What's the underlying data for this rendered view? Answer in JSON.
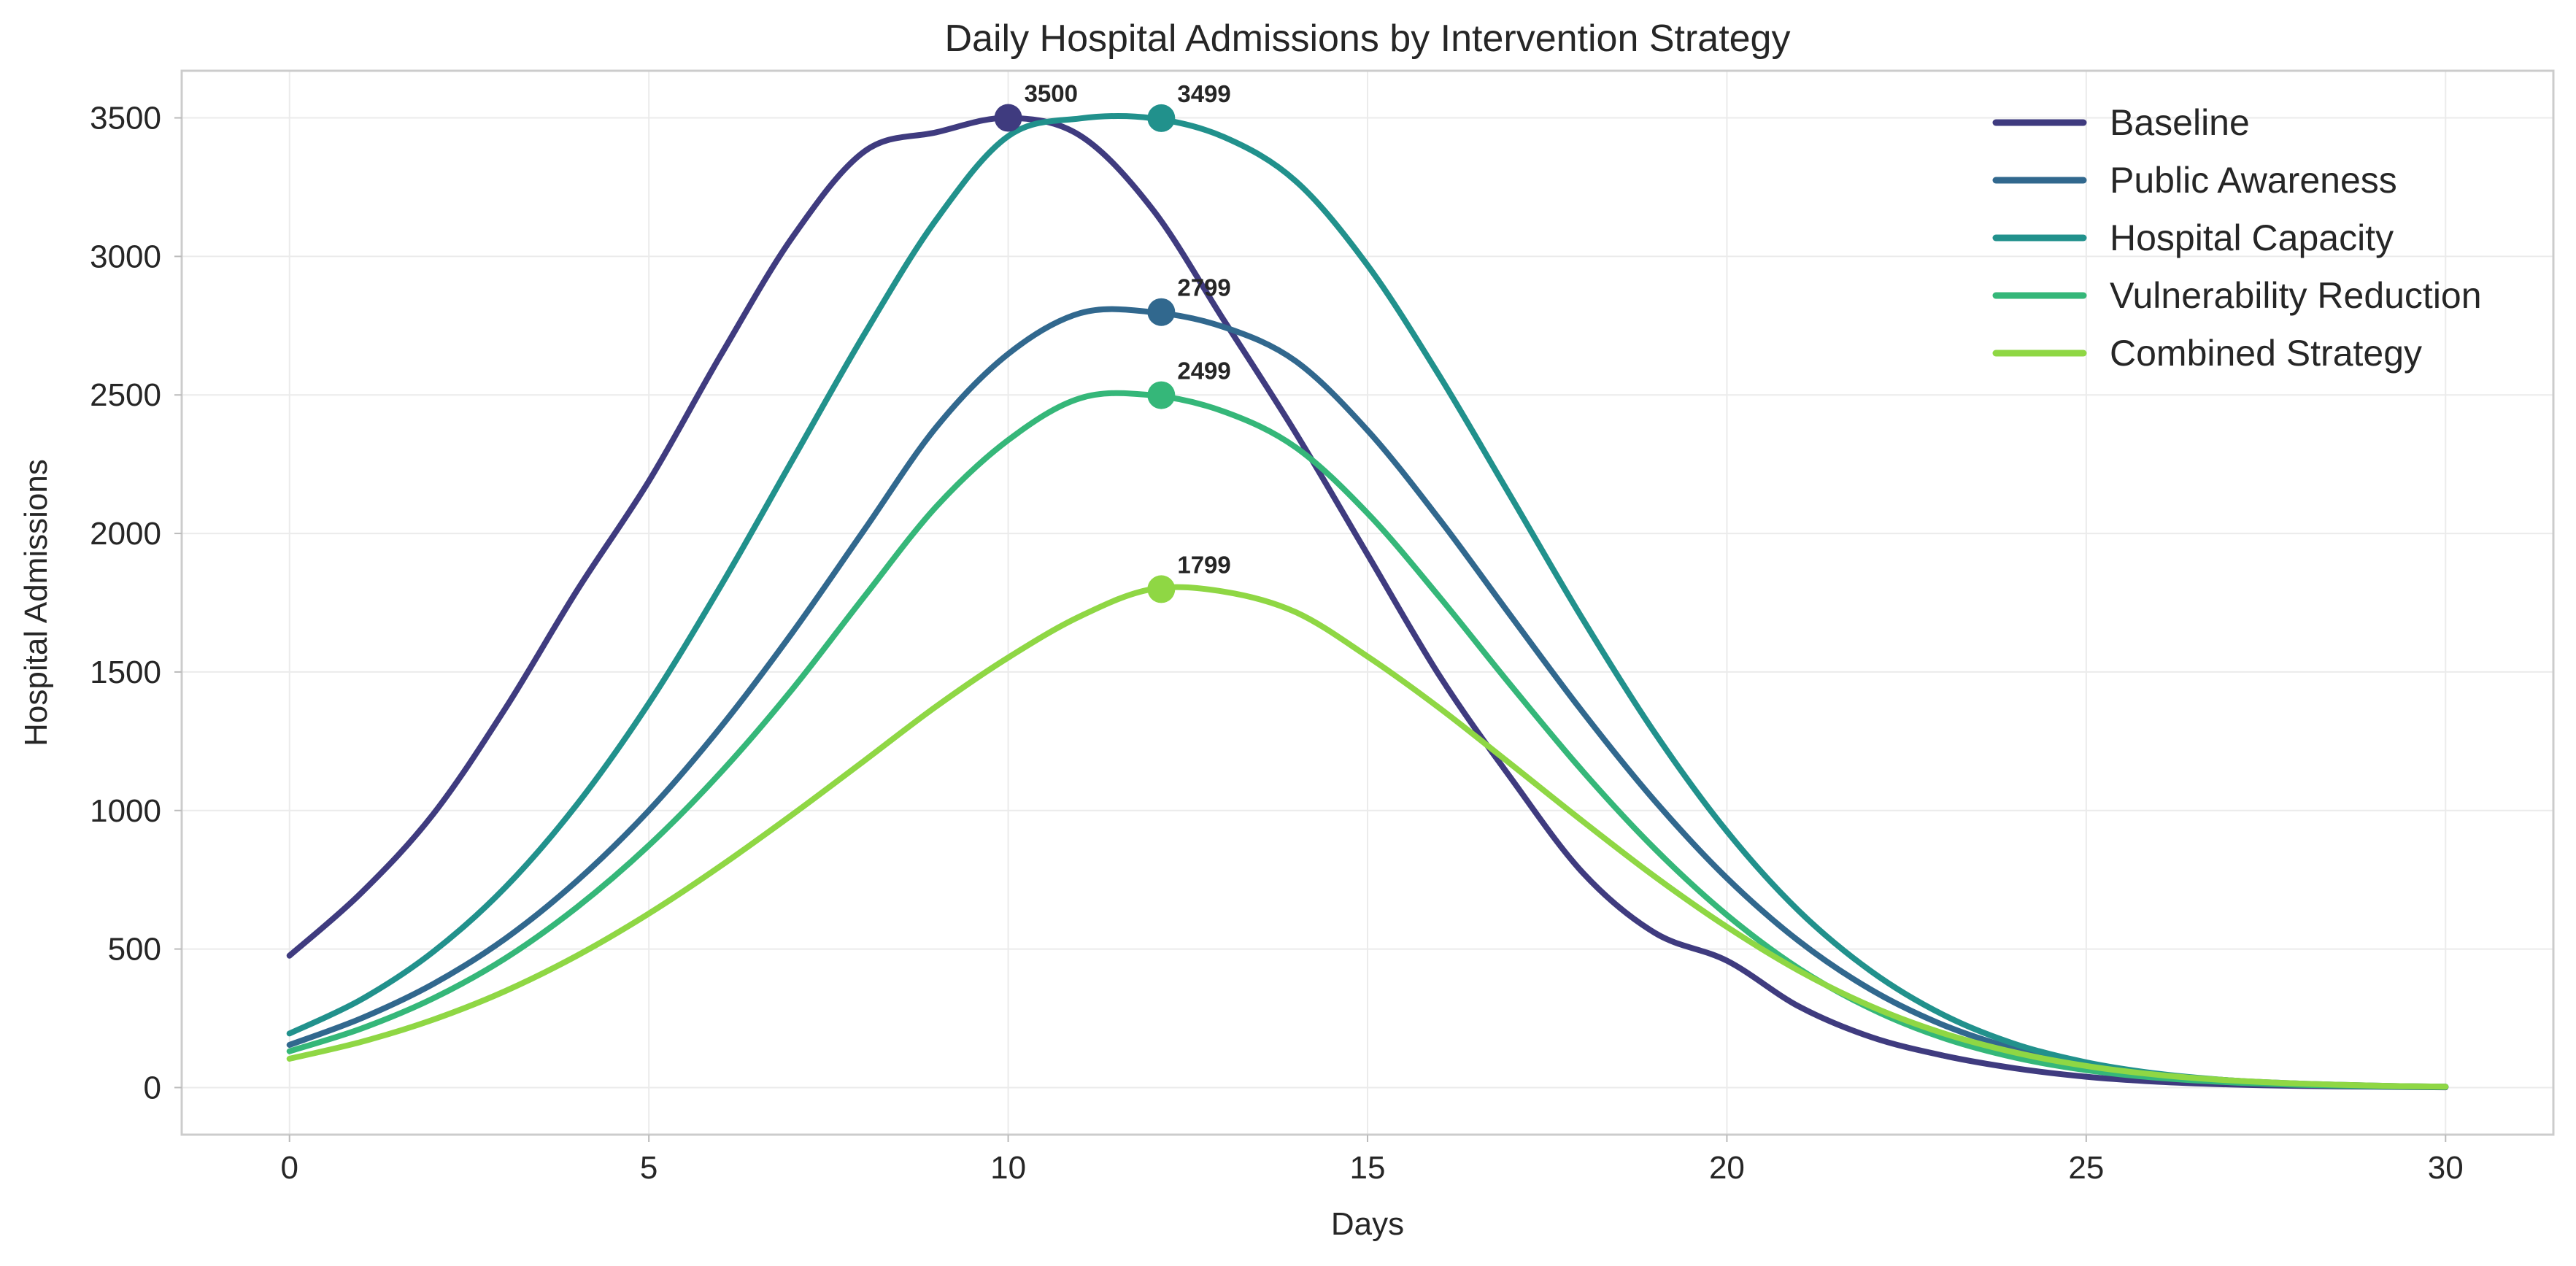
{
  "chart_data": {
    "type": "line",
    "title": "Daily Hospital Admissions by Intervention Strategy",
    "xlabel": "Days",
    "ylabel": "Hospital Admissions",
    "xlim": [
      -1.5,
      31.5
    ],
    "ylim": [
      -170,
      3670
    ],
    "xticks": [
      0,
      5,
      10,
      15,
      20,
      25,
      30
    ],
    "yticks": [
      0,
      500,
      1000,
      1500,
      2000,
      2500,
      3000,
      3500
    ],
    "grid": true,
    "legend_position": "top-right",
    "x": [
      0,
      1,
      2,
      3,
      4,
      5,
      6,
      7,
      8,
      9,
      10,
      11,
      12,
      13,
      14,
      15,
      16,
      17,
      18,
      19,
      20,
      21,
      22,
      23,
      24,
      25,
      26,
      27,
      28,
      29,
      30
    ],
    "series": [
      {
        "name": "Baseline",
        "color": "#3f3b7f",
        "values": [
          476,
          703,
          987,
          1367,
          1794,
          2189,
          2643,
          3070,
          3379,
          3448,
          3500,
          3436,
          3173,
          2770,
          2363,
          1924,
          1487,
          1115,
          774,
          558,
          458,
          293,
          183,
          116,
          70,
          39,
          21,
          11,
          6,
          3,
          1
        ],
        "peak": {
          "x": 10,
          "y": 3500,
          "label": "3500"
        }
      },
      {
        "name": "Public Awareness",
        "color": "#31688e",
        "values": [
          154,
          250,
          374,
          537,
          746,
          1000,
          1301,
          1643,
          2014,
          2384,
          2648,
          2795,
          2799,
          2745,
          2622,
          2372,
          2051,
          1700,
          1353,
          1034,
          756,
          529,
          354,
          227,
          140,
          83,
          47,
          26,
          14,
          7,
          3
        ],
        "peak": {
          "x": 12.13,
          "y": 2799,
          "label": "2799"
        }
      },
      {
        "name": "Hospital Capacity",
        "color": "#21918c",
        "values": [
          195,
          318,
          490,
          722,
          1022,
          1387,
          1810,
          2266,
          2720,
          3133,
          3434,
          3498,
          3499,
          3431,
          3272,
          2968,
          2569,
          2130,
          1688,
          1279,
          925,
          638,
          421,
          264,
          158,
          91,
          50,
          26,
          13,
          6,
          3
        ],
        "peak": {
          "x": 12.13,
          "y": 3499,
          "label": "3499"
        }
      },
      {
        "name": "Vulnerability Reduction",
        "color": "#35b779",
        "values": [
          131,
          213,
          322,
          466,
          651,
          874,
          1137,
          1439,
          1773,
          2097,
          2337,
          2488,
          2499,
          2440,
          2311,
          2073,
          1771,
          1450,
          1140,
          861,
          623,
          430,
          285,
          180,
          109,
          63,
          35,
          19,
          10,
          5,
          2
        ],
        "peak": {
          "x": 12.13,
          "y": 2499,
          "label": "2499"
        }
      },
      {
        "name": "Combined Strategy",
        "color": "#8fd744",
        "values": [
          104,
          165,
          245,
          348,
          476,
          628,
          800,
          986,
          1180,
          1376,
          1552,
          1701,
          1799,
          1790,
          1716,
          1556,
          1370,
          1166,
          960,
          761,
          580,
          422,
          294,
          197,
          127,
          78,
          46,
          26,
          14,
          7,
          3
        ],
        "peak": {
          "x": 12.13,
          "y": 1799,
          "label": "1799"
        }
      }
    ]
  }
}
